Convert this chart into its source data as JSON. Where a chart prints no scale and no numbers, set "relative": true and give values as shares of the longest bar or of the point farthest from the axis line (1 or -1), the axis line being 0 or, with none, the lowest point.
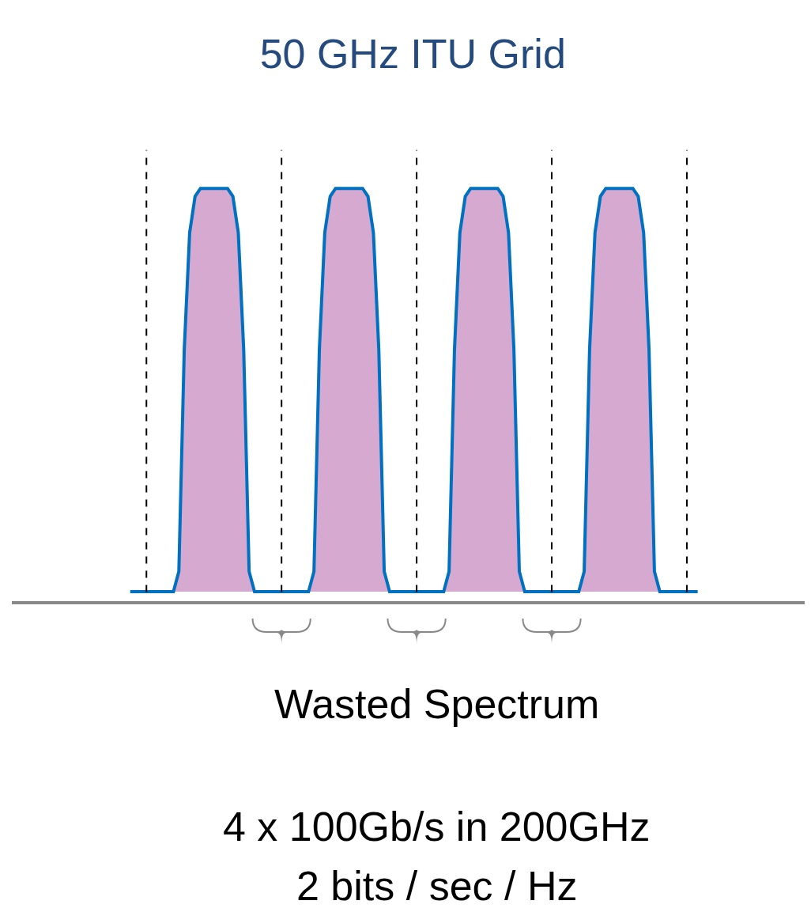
{
  "chart_data": {
    "type": "area",
    "title": "50 GHz ITU Grid",
    "relative": true,
    "categories": [
      null,
      null,
      null,
      null,
      null,
      null,
      null,
      null,
      null,
      null,
      null,
      null,
      null,
      null,
      null,
      null,
      null,
      null,
      null,
      null,
      null,
      null,
      null,
      null,
      null,
      null,
      null,
      null,
      null,
      null,
      null,
      null,
      null,
      null,
      null,
      null,
      null,
      null,
      null,
      null,
      null,
      null,
      null,
      null,
      null,
      null,
      null,
      null,
      null,
      null,
      null,
      null,
      null,
      null,
      null,
      null,
      null,
      null,
      null,
      null,
      null,
      null,
      null,
      null,
      null,
      null,
      null,
      null,
      null,
      null,
      null,
      null,
      null,
      null,
      null,
      null,
      null,
      null,
      null,
      null,
      null,
      null,
      null,
      null,
      null,
      null,
      null,
      null,
      null,
      null,
      null,
      null,
      null,
      null,
      null,
      null,
      null,
      null,
      null,
      null,
      null,
      null,
      null,
      null,
      null,
      null
    ],
    "series": [
      {
        "color": "#d5a9d0",
        "values": [
          0,
          0,
          0,
          0,
          0,
          0,
          0,
          0,
          0,
          0.05,
          0.6,
          0.89,
          0.98,
          1,
          1,
          1,
          1,
          1,
          1,
          0.98,
          0.89,
          0.6,
          0.05,
          0,
          0,
          0,
          0,
          0,
          0,
          0,
          0,
          0,
          0,
          0,
          0.05,
          0.6,
          0.89,
          0.98,
          1,
          1,
          1,
          1,
          1,
          1,
          0.98,
          0.89,
          0.6,
          0.05,
          0,
          0,
          0,
          0,
          0,
          0,
          0,
          0,
          0,
          0,
          0,
          0.05,
          0.6,
          0.89,
          0.98,
          1,
          1,
          1,
          1,
          1,
          1,
          0.98,
          0.89,
          0.6,
          0.05,
          0,
          0,
          0,
          0,
          0,
          0,
          0,
          0,
          0,
          0,
          0,
          0.05,
          0.6,
          0.89,
          0.98,
          1,
          1,
          1,
          1,
          1,
          1,
          0.98,
          0.89,
          0.6,
          0.05,
          0,
          0,
          0,
          0,
          0,
          0,
          0,
          0
        ]
      }
    ],
    "annotations": [
      "Wasted Spectrum",
      "4 x 100Gb/s in 200GHz",
      "2 bits / sec / Hz"
    ],
    "grid": "x"
  }
}
